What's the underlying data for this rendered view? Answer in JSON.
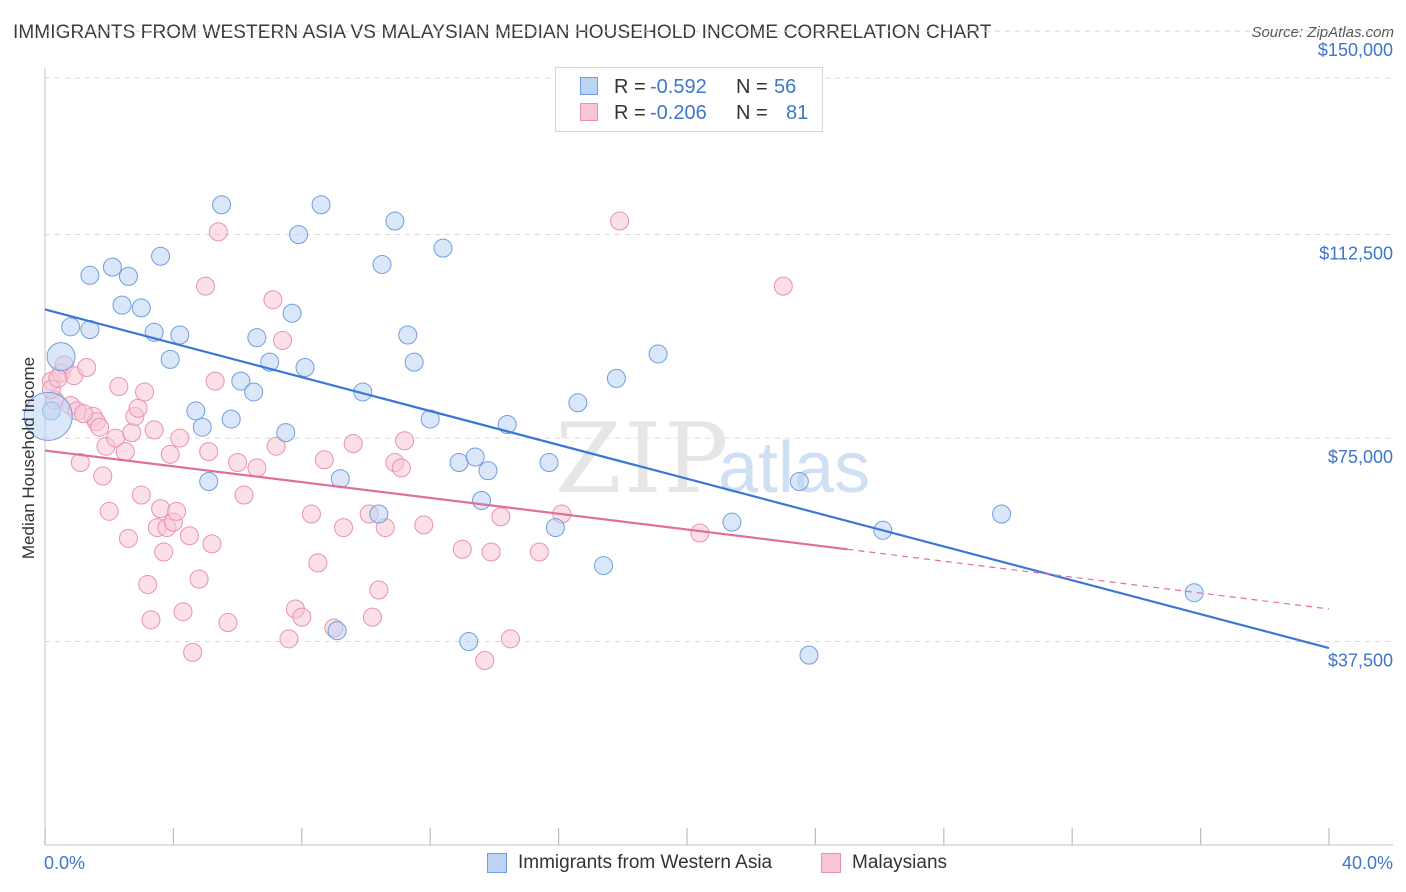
{
  "header": {
    "title": "IMMIGRANTS FROM WESTERN ASIA VS MALAYSIAN MEDIAN HOUSEHOLD INCOME CORRELATION CHART",
    "source": "Source: ZipAtlas.com"
  },
  "watermark": {
    "zip": "ZIP",
    "atlas": "atlas"
  },
  "colors": {
    "blue": "#3a78d4",
    "blue_fill": "#bcd3f3",
    "pink": "#e07099",
    "pink_fill": "#f8c6d6",
    "tick_text": "#3f76c9",
    "grid": "#d8d8d8"
  },
  "legend": {
    "rows": [
      {
        "r_label": "R =",
        "r_value": "-0.592",
        "n_label": "N =",
        "n_value": "56"
      },
      {
        "r_label": "R =",
        "r_value": "-0.206",
        "n_label": "N =",
        "n_value": "81"
      }
    ]
  },
  "bottom_legend": {
    "series1": "Immigrants from Western Asia",
    "series2": "Malaysians"
  },
  "chart_data": {
    "type": "scatter",
    "title": "IMMIGRANTS FROM WESTERN ASIA VS MALAYSIAN MEDIAN HOUSEHOLD INCOME CORRELATION CHART",
    "xlabel": "",
    "ylabel": "Median Household Income",
    "xlim": [
      0,
      40
    ],
    "ylim": [
      0,
      155000
    ],
    "x_tick_labels": [
      "0.0%",
      "40.0%"
    ],
    "y_ticks": [
      37500,
      75000,
      112500,
      150000
    ],
    "y_tick_labels": [
      "$37,500",
      "$75,000",
      "$112,500",
      "$150,000"
    ],
    "grid": true,
    "legend_position": "top-center",
    "series": [
      {
        "name": "Immigrants from Western Asia",
        "color": "#3a78d4",
        "trend": {
          "x": [
            0,
            40
          ],
          "y": [
            98700,
            36300
          ]
        },
        "points": [
          [
            0.5,
            90000
          ],
          [
            0.2,
            80000
          ],
          [
            1.4,
            95000
          ],
          [
            0.8,
            95500
          ],
          [
            1.4,
            105000
          ],
          [
            2.1,
            106500
          ],
          [
            2.6,
            104800
          ],
          [
            2.4,
            99500
          ],
          [
            3.0,
            99000
          ],
          [
            3.4,
            94500
          ],
          [
            3.6,
            108500
          ],
          [
            4.2,
            94000
          ],
          [
            3.9,
            89500
          ],
          [
            5.5,
            118000
          ],
          [
            4.7,
            80000
          ],
          [
            4.9,
            77000
          ],
          [
            5.1,
            67000
          ],
          [
            5.8,
            78500
          ],
          [
            6.1,
            85500
          ],
          [
            6.5,
            83500
          ],
          [
            6.6,
            93500
          ],
          [
            7.0,
            89000
          ],
          [
            7.7,
            98000
          ],
          [
            7.9,
            112500
          ],
          [
            8.1,
            88000
          ],
          [
            7.5,
            76000
          ],
          [
            8.6,
            118000
          ],
          [
            9.1,
            39500
          ],
          [
            9.2,
            67500
          ],
          [
            9.9,
            83500
          ],
          [
            10.4,
            61000
          ],
          [
            10.5,
            107000
          ],
          [
            10.9,
            115000
          ],
          [
            11.3,
            94000
          ],
          [
            11.5,
            89000
          ],
          [
            12.0,
            78500
          ],
          [
            12.4,
            110000
          ],
          [
            12.9,
            70500
          ],
          [
            13.2,
            37500
          ],
          [
            13.4,
            71500
          ],
          [
            13.6,
            63500
          ],
          [
            13.8,
            69000
          ],
          [
            14.4,
            77500
          ],
          [
            15.7,
            70500
          ],
          [
            15.9,
            58500
          ],
          [
            16.6,
            81500
          ],
          [
            17.4,
            51500
          ],
          [
            17.8,
            86000
          ],
          [
            19.1,
            90500
          ],
          [
            21.4,
            59500
          ],
          [
            23.5,
            67000
          ],
          [
            23.8,
            35000
          ],
          [
            26.1,
            58000
          ],
          [
            29.8,
            61000
          ],
          [
            35.8,
            46500
          ],
          [
            0.1,
            79000
          ]
        ]
      },
      {
        "name": "Malaysians",
        "color": "#e07099",
        "trend": {
          "x": [
            0,
            25.0
          ],
          "y": [
            72700,
            54500
          ]
        },
        "trend_ext": {
          "x": [
            25.0,
            40
          ],
          "y": [
            54500,
            43500
          ]
        },
        "points": [
          [
            0.2,
            85500
          ],
          [
            0.3,
            82000
          ],
          [
            0.5,
            87000
          ],
          [
            0.6,
            88500
          ],
          [
            0.8,
            81000
          ],
          [
            1.0,
            80000
          ],
          [
            0.9,
            86500
          ],
          [
            1.1,
            70500
          ],
          [
            1.3,
            88000
          ],
          [
            1.5,
            79000
          ],
          [
            1.6,
            78000
          ],
          [
            1.7,
            77000
          ],
          [
            1.8,
            68000
          ],
          [
            1.9,
            73500
          ],
          [
            2.0,
            61500
          ],
          [
            2.2,
            75000
          ],
          [
            2.3,
            84500
          ],
          [
            2.5,
            72500
          ],
          [
            2.6,
            56500
          ],
          [
            2.7,
            76000
          ],
          [
            2.8,
            79000
          ],
          [
            2.9,
            80500
          ],
          [
            3.0,
            64500
          ],
          [
            3.1,
            83500
          ],
          [
            3.2,
            48000
          ],
          [
            3.3,
            41500
          ],
          [
            3.4,
            76500
          ],
          [
            3.5,
            58500
          ],
          [
            3.6,
            62000
          ],
          [
            3.7,
            54000
          ],
          [
            3.8,
            58500
          ],
          [
            3.9,
            72000
          ],
          [
            4.0,
            59500
          ],
          [
            4.1,
            61500
          ],
          [
            4.2,
            75000
          ],
          [
            4.3,
            43000
          ],
          [
            4.5,
            57000
          ],
          [
            4.6,
            35500
          ],
          [
            4.8,
            49000
          ],
          [
            5.0,
            103000
          ],
          [
            5.1,
            72500
          ],
          [
            5.2,
            55500
          ],
          [
            5.3,
            85500
          ],
          [
            5.4,
            113000
          ],
          [
            5.7,
            41000
          ],
          [
            6.0,
            70500
          ],
          [
            6.2,
            64500
          ],
          [
            6.6,
            69500
          ],
          [
            7.1,
            100500
          ],
          [
            7.2,
            73500
          ],
          [
            7.4,
            93000
          ],
          [
            7.6,
            38000
          ],
          [
            7.8,
            43500
          ],
          [
            8.0,
            42000
          ],
          [
            8.3,
            61000
          ],
          [
            8.5,
            52000
          ],
          [
            8.7,
            71000
          ],
          [
            9.0,
            40000
          ],
          [
            9.3,
            58500
          ],
          [
            9.6,
            74000
          ],
          [
            10.1,
            61000
          ],
          [
            10.2,
            42000
          ],
          [
            10.4,
            47000
          ],
          [
            10.6,
            58500
          ],
          [
            10.9,
            70500
          ],
          [
            11.2,
            74500
          ],
          [
            11.8,
            59000
          ],
          [
            13.0,
            54500
          ],
          [
            13.7,
            34000
          ],
          [
            13.9,
            54000
          ],
          [
            14.2,
            60500
          ],
          [
            14.5,
            38000
          ],
          [
            15.4,
            54000
          ],
          [
            16.1,
            61000
          ],
          [
            17.9,
            115000
          ],
          [
            20.4,
            57500
          ],
          [
            23.0,
            103000
          ],
          [
            0.2,
            84000
          ],
          [
            0.4,
            86000
          ],
          [
            1.2,
            79500
          ],
          [
            11.1,
            69500
          ]
        ]
      }
    ]
  }
}
